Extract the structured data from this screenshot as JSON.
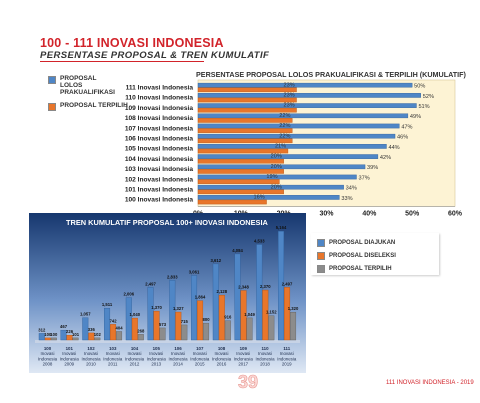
{
  "page": {
    "title": "100 - 111 INOVASI INDONESIA",
    "subtitle": "PERSENTASE PROPOSAL & TREN KUMULATIF",
    "page_number": "39",
    "footer": "111 INOVASI INDONESIA - 2019"
  },
  "colors": {
    "blue": "#4f86c6",
    "orange": "#e8762b",
    "gray": "#8c8c8c",
    "cream": "#fdf3d4",
    "navy": "#1c3d7a"
  },
  "legend1": [
    {
      "label": "PROPOSAL LOLOS PRAKUALIFIKASI",
      "color": "#4f86c6"
    },
    {
      "label": "PROPOSAL TERPILIH",
      "color": "#e8762b"
    }
  ],
  "legend2": [
    {
      "label": "PROPOSAL DIAJUKAN",
      "color": "#4f86c6"
    },
    {
      "label": "PROPOSAL DISELEKSI",
      "color": "#e8762b"
    },
    {
      "label": "PROPOSAL TERPILIH",
      "color": "#8c8c8c"
    }
  ],
  "chart_data": [
    {
      "type": "bar",
      "orientation": "horizontal",
      "title": "PERSENTASE PROPOSAL LOLOS PRAKUALIFIKASI & TERPILIH (KUMULATIF)",
      "categories": [
        "111 Inovasi Indonesia",
        "110 Inovasi Indonesia",
        "109 Inovasi Indonesia",
        "108 Inovasi Indonesia",
        "107 Inovasi Indonesia",
        "106 Inovasi Indonesia",
        "105 Inovasi Indonesia",
        "104 Inovasi Indonesia",
        "103 Inovasi Indonesia",
        "102 Inovasi Indonesia",
        "101 Inovasi Indonesia",
        "100 Inovasi Indonesia"
      ],
      "series": [
        {
          "name": "PROPOSAL LOLOS PRAKUALIFIKASI",
          "values": [
            50,
            52,
            51,
            49,
            47,
            46,
            44,
            42,
            39,
            37,
            34,
            33
          ],
          "labels": [
            "50%",
            "52%",
            "51%",
            "49%",
            "47%",
            "46%",
            "44%",
            "42%",
            "39%",
            "37%",
            "34%",
            "33%"
          ]
        },
        {
          "name": "PROPOSAL TERPILIH",
          "values": [
            23,
            23,
            23,
            22,
            22,
            22,
            21,
            20,
            20,
            19,
            20,
            16
          ],
          "labels": [
            "23%",
            "23%",
            "23%",
            "22%",
            "22%",
            "22%",
            "21%",
            "20%",
            "20%",
            "19%",
            "20%",
            "16%"
          ]
        }
      ],
      "xticks": [
        "0%",
        "10%",
        "20%",
        "30%",
        "40%",
        "50%",
        "60%"
      ],
      "xlim": [
        0,
        60
      ]
    },
    {
      "type": "bar",
      "title": "TREN KUMULATIF PROPOSAL 100+ INOVASI INDONESIA",
      "categories": [
        "100 Inovasi Indonesia 2008",
        "101 Inovasi Indonesia 2009",
        "102 Inovasi Indonesia 2010",
        "103 Inovasi Indonesia 2011",
        "104 Inovasi Indonesia 2012",
        "105 Inovasi Indonesia 2013",
        "106 Inovasi Indonesia 2014",
        "107 Inovasi Indonesia 2015",
        "108 Inovasi Indonesia 2016",
        "109 Inovasi Indonesia 2017",
        "110 Inovasi Indonesia 2018",
        "111 Inovasi Indonesia 2019"
      ],
      "category_lines": [
        [
          "100",
          "Inovasi",
          "Indonesia",
          "2008"
        ],
        [
          "101",
          "Inovasi",
          "Indonesia",
          "2009"
        ],
        [
          "102",
          "Inovasi",
          "Indonesia",
          "2010"
        ],
        [
          "103",
          "Inovasi",
          "Indonesia",
          "2011"
        ],
        [
          "104",
          "Inovasi",
          "Indonesia",
          "2012"
        ],
        [
          "105",
          "Inovasi",
          "Indonesia",
          "2013"
        ],
        [
          "106",
          "Inovasi",
          "Indonesia",
          "2014"
        ],
        [
          "107",
          "Inovasi",
          "Indonesia",
          "2015"
        ],
        [
          "108",
          "Inovasi",
          "Indonesia",
          "2016"
        ],
        [
          "109",
          "Inovasi",
          "Indonesia",
          "2017"
        ],
        [
          "110",
          "Inovasi",
          "Indonesia",
          "2018"
        ],
        [
          "111",
          "Inovasi",
          "Indonesia",
          "2019"
        ]
      ],
      "series": [
        {
          "name": "PROPOSAL DIAJUKAN",
          "values": [
            312,
            467,
            1057,
            1511,
            2006,
            2497,
            2833,
            3061,
            3612,
            4084,
            4533,
            5164
          ],
          "labels": [
            "312",
            "467",
            "1,057",
            "1,511",
            "2,006",
            "2,497",
            "2,833",
            "3,061",
            "3,612",
            "4,084",
            "4,533",
            "5,164"
          ]
        },
        {
          "name": "PROPOSAL DISELEKSI",
          "values": [
            100,
            226,
            336,
            742,
            1040,
            1370,
            1327,
            1864,
            2128,
            2348,
            2370,
            2497
          ],
          "labels": [
            "100",
            "226",
            "336",
            "742",
            "1,040",
            "1,370",
            "1,327",
            "1,864",
            "2,128",
            "2,348",
            "2,370",
            "2,497"
          ]
        },
        {
          "name": "PROPOSAL TERPILIH",
          "values": [
            100,
            101,
            102,
            404,
            268,
            573,
            715,
            800,
            916,
            1049,
            1152,
            1320
          ],
          "labels": [
            "100",
            "101",
            "102",
            "404",
            "268",
            "573",
            "715",
            "800",
            "916",
            "1,049",
            "1,152",
            "1,320"
          ]
        }
      ],
      "ylim": [
        0,
        5600
      ]
    }
  ]
}
